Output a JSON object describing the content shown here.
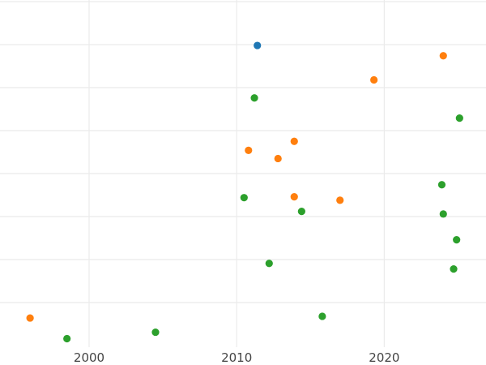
{
  "chart_data": {
    "type": "scatter",
    "title": "",
    "xlabel": "",
    "ylabel": "",
    "grid": true,
    "legend": "none",
    "x_ticks": [
      2000,
      2010,
      2020
    ],
    "x_tick_labels": [
      "2000",
      "2010",
      "2020"
    ],
    "xlim": [
      1994,
      2027
    ],
    "ylim": [
      0,
      8
    ],
    "y_gridlines": [
      1,
      2,
      3,
      4,
      5,
      6,
      7,
      8
    ],
    "series": [
      {
        "color": "#1f77b4",
        "points": [
          {
            "x": 2011.4,
            "y": 6.98
          }
        ]
      },
      {
        "color": "#ff7f0e",
        "points": [
          {
            "x": 2024.0,
            "y": 6.74
          },
          {
            "x": 2019.3,
            "y": 6.18
          },
          {
            "x": 2013.9,
            "y": 4.75
          },
          {
            "x": 2010.8,
            "y": 4.54
          },
          {
            "x": 2012.8,
            "y": 4.35
          },
          {
            "x": 2013.9,
            "y": 3.46
          },
          {
            "x": 2017.0,
            "y": 3.38
          },
          {
            "x": 1996.0,
            "y": 0.64
          }
        ]
      },
      {
        "color": "#2ca02c",
        "points": [
          {
            "x": 2011.2,
            "y": 5.76
          },
          {
            "x": 2025.1,
            "y": 5.29
          },
          {
            "x": 2023.9,
            "y": 3.74
          },
          {
            "x": 2010.5,
            "y": 3.44
          },
          {
            "x": 2014.4,
            "y": 3.12
          },
          {
            "x": 2024.0,
            "y": 3.06
          },
          {
            "x": 2024.9,
            "y": 2.46
          },
          {
            "x": 2012.2,
            "y": 1.91
          },
          {
            "x": 2024.7,
            "y": 1.78
          },
          {
            "x": 2015.8,
            "y": 0.68
          },
          {
            "x": 1998.5,
            "y": 0.16
          },
          {
            "x": 2004.5,
            "y": 0.31
          }
        ]
      }
    ]
  }
}
